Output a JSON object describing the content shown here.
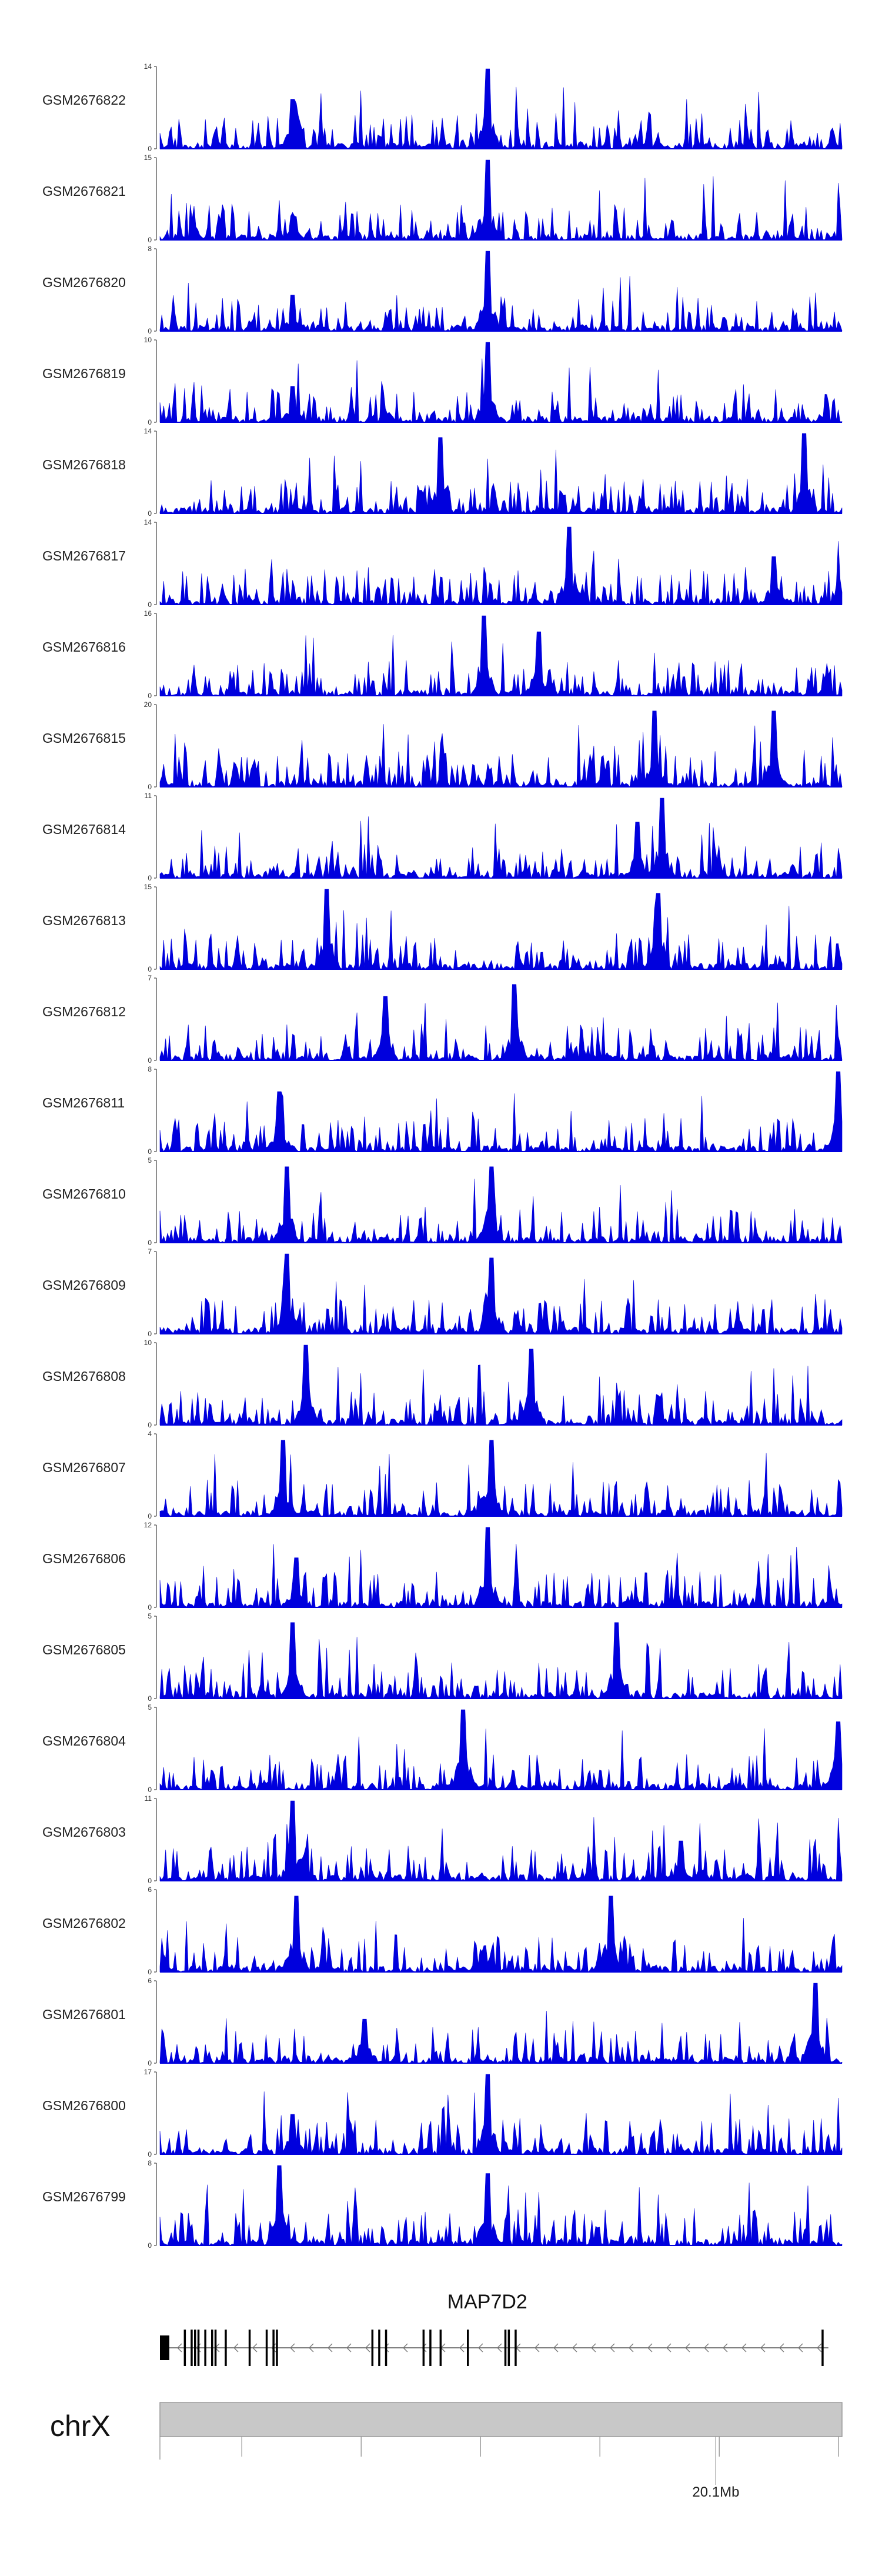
{
  "chart_data": {
    "type": "area",
    "title": "",
    "color": "#0000dd",
    "tracks": [
      {
        "name": "GSM2676822",
        "ymax": 14,
        "ymin": 0,
        "seed": 22,
        "peaks": [
          [
            0.195,
            0.62
          ],
          [
            0.48,
            1.0
          ]
        ]
      },
      {
        "name": "GSM2676821",
        "ymax": 15,
        "ymin": 0,
        "seed": 21,
        "peaks": [
          [
            0.195,
            0.3
          ],
          [
            0.48,
            1.0
          ]
        ]
      },
      {
        "name": "GSM2676820",
        "ymax": 8,
        "ymin": 0,
        "seed": 20,
        "peaks": [
          [
            0.195,
            0.45
          ],
          [
            0.48,
            1.0
          ]
        ]
      },
      {
        "name": "GSM2676819",
        "ymax": 10,
        "ymin": 0,
        "seed": 19,
        "peaks": [
          [
            0.195,
            0.45
          ],
          [
            0.48,
            1.0
          ]
        ]
      },
      {
        "name": "GSM2676818",
        "ymax": 14,
        "ymin": 0,
        "seed": 18,
        "peaks": [
          [
            0.41,
            0.95
          ],
          [
            0.945,
            1.0
          ]
        ]
      },
      {
        "name": "GSM2676817",
        "ymax": 14,
        "ymin": 0,
        "seed": 17,
        "peaks": [
          [
            0.6,
            0.97
          ],
          [
            0.9,
            0.6
          ]
        ]
      },
      {
        "name": "GSM2676816",
        "ymax": 16,
        "ymin": 0,
        "seed": 16,
        "peaks": [
          [
            0.475,
            1.0
          ],
          [
            0.555,
            0.8
          ]
        ]
      },
      {
        "name": "GSM2676815",
        "ymax": 20,
        "ymin": 0,
        "seed": 15,
        "peaks": [
          [
            0.725,
            0.95
          ],
          [
            0.9,
            0.95
          ]
        ]
      },
      {
        "name": "GSM2676814",
        "ymax": 11,
        "ymin": 0,
        "seed": 14,
        "peaks": [
          [
            0.735,
            1.0
          ],
          [
            0.7,
            0.7
          ]
        ]
      },
      {
        "name": "GSM2676813",
        "ymax": 15,
        "ymin": 0,
        "seed": 13,
        "peaks": [
          [
            0.245,
            1.0
          ],
          [
            0.73,
            0.95
          ]
        ]
      },
      {
        "name": "GSM2676812",
        "ymax": 7,
        "ymin": 0,
        "seed": 12,
        "peaks": [
          [
            0.52,
            0.95
          ],
          [
            0.33,
            0.8
          ]
        ]
      },
      {
        "name": "GSM2676811",
        "ymax": 8,
        "ymin": 0,
        "seed": 11,
        "peaks": [
          [
            0.175,
            0.75
          ],
          [
            0.995,
            1.0
          ]
        ]
      },
      {
        "name": "GSM2676810",
        "ymax": 5,
        "ymin": 0,
        "seed": 10,
        "peaks": [
          [
            0.185,
            0.95
          ],
          [
            0.485,
            0.95
          ]
        ]
      },
      {
        "name": "GSM2676809",
        "ymax": 7,
        "ymin": 0,
        "seed": 9,
        "peaks": [
          [
            0.185,
            1.0
          ],
          [
            0.485,
            0.95
          ]
        ]
      },
      {
        "name": "GSM2676808",
        "ymax": 10,
        "ymin": 0,
        "seed": 8,
        "peaks": [
          [
            0.215,
            1.0
          ],
          [
            0.545,
            0.95
          ]
        ]
      },
      {
        "name": "GSM2676807",
        "ymax": 4,
        "ymin": 0,
        "seed": 7,
        "peaks": [
          [
            0.18,
            0.95
          ],
          [
            0.485,
            0.95
          ]
        ]
      },
      {
        "name": "GSM2676806",
        "ymax": 12,
        "ymin": 0,
        "seed": 6,
        "peaks": [
          [
            0.48,
            1.0
          ],
          [
            0.2,
            0.62
          ]
        ]
      },
      {
        "name": "GSM2676805",
        "ymax": 5,
        "ymin": 0,
        "seed": 5,
        "peaks": [
          [
            0.195,
            0.95
          ],
          [
            0.67,
            0.95
          ]
        ]
      },
      {
        "name": "GSM2676804",
        "ymax": 5,
        "ymin": 0,
        "seed": 4,
        "peaks": [
          [
            0.445,
            1.0
          ],
          [
            0.995,
            0.85
          ]
        ]
      },
      {
        "name": "GSM2676803",
        "ymax": 11,
        "ymin": 0,
        "seed": 3,
        "peaks": [
          [
            0.195,
            1.0
          ],
          [
            0.765,
            0.5
          ]
        ]
      },
      {
        "name": "GSM2676802",
        "ymax": 6,
        "ymin": 0,
        "seed": 2,
        "peaks": [
          [
            0.2,
            0.95
          ],
          [
            0.66,
            0.95
          ]
        ]
      },
      {
        "name": "GSM2676801",
        "ymax": 6,
        "ymin": 0,
        "seed": 1,
        "peaks": [
          [
            0.96,
            1.0
          ],
          [
            0.3,
            0.55
          ]
        ]
      },
      {
        "name": "GSM2676800",
        "ymax": 17,
        "ymin": 0,
        "seed": 100,
        "peaks": [
          [
            0.48,
            1.0
          ],
          [
            0.195,
            0.5
          ]
        ]
      },
      {
        "name": "GSM2676799",
        "ymax": 8,
        "ymin": 0,
        "seed": 99,
        "peaks": [
          [
            0.175,
            1.0
          ],
          [
            0.48,
            0.9
          ]
        ]
      }
    ],
    "gene": {
      "name": "MAP7D2",
      "strand": "-",
      "exons": [
        0.0,
        0.035,
        0.045,
        0.05,
        0.055,
        0.065,
        0.075,
        0.08,
        0.095,
        0.13,
        0.155,
        0.165,
        0.17,
        0.31,
        0.32,
        0.33,
        0.385,
        0.395,
        0.41,
        0.45,
        0.505,
        0.51,
        0.52,
        0.97
      ]
    },
    "chromosome": "chrX",
    "axis": {
      "minor_ticks": [
        0.12,
        0.295,
        0.47,
        0.645,
        0.82,
        0.995
      ],
      "major_ticks": [
        {
          "pos": 0.815,
          "label": "20.1Mb"
        }
      ]
    }
  }
}
